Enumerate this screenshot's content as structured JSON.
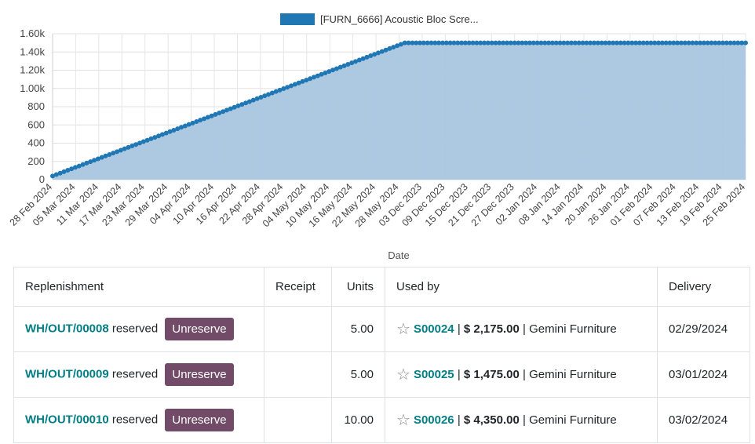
{
  "chart_data": {
    "type": "area",
    "legend": "[FURN_6666] Acoustic Bloc Scre...",
    "legend_position": "top",
    "xlabel": "Date",
    "ylabel": "",
    "yticks": [
      "0",
      "200",
      "400",
      "600",
      "800",
      "1.00k",
      "1.20k",
      "1.40k",
      "1.60k"
    ],
    "ylim": [
      0,
      1600
    ],
    "grid": true,
    "color": "#1f77b4",
    "fill_color": "#a9c6e0",
    "xticks": [
      "28 Feb 2024",
      "05 Mar 2024",
      "11 Mar 2024",
      "17 Mar 2024",
      "23 Mar 2024",
      "29 Mar 2024",
      "04 Apr 2024",
      "10 Apr 2024",
      "16 Apr 2024",
      "22 Apr 2024",
      "28 Apr 2024",
      "04 May 2024",
      "10 May 2024",
      "16 May 2024",
      "22 May 2024",
      "28 May 2024",
      "03 Dec 2023",
      "09 Dec 2023",
      "15 Dec 2023",
      "21 Dec 2023",
      "27 Dec 2023",
      "02 Jan 2024",
      "08 Jan 2024",
      "14 Jan 2024",
      "20 Jan 2024",
      "26 Jan 2024",
      "01 Feb 2024",
      "07 Feb 2024",
      "13 Feb 2024",
      "19 Feb 2024",
      "25 Feb 2024"
    ],
    "series": [
      {
        "name": "[FURN_6666] Acoustic Bloc Scre...",
        "segments": [
          {
            "from": "28 Feb 2024",
            "to": "31 May 2024",
            "y_start": 40,
            "y_end": 1500,
            "step_days": 1
          },
          {
            "from": "31 May 2024",
            "to": "29 Feb 2024",
            "y_start": 1500,
            "y_end": 1500,
            "step_days": 1
          }
        ]
      }
    ]
  },
  "table": {
    "headers": {
      "replenishment": "Replenishment",
      "receipt": "Receipt",
      "units": "Units",
      "used_by": "Used by",
      "delivery": "Delivery"
    },
    "rows": [
      {
        "ref": "WH/OUT/00008",
        "status": "reserved",
        "action": "Unreserve",
        "receipt": "",
        "units": "5.00",
        "order": "S00024",
        "amount": "$ 2,175.00",
        "customer": "Gemini Furniture",
        "delivery": "02/29/2024"
      },
      {
        "ref": "WH/OUT/00009",
        "status": "reserved",
        "action": "Unreserve",
        "receipt": "",
        "units": "5.00",
        "order": "S00025",
        "amount": "$ 1,475.00",
        "customer": "Gemini Furniture",
        "delivery": "03/01/2024"
      },
      {
        "ref": "WH/OUT/00010",
        "status": "reserved",
        "action": "Unreserve",
        "receipt": "",
        "units": "10.00",
        "order": "S00026",
        "amount": "$ 4,350.00",
        "customer": "Gemini Furniture",
        "delivery": "03/02/2024"
      }
    ],
    "separator": "|",
    "star_icon": "star-outline-icon"
  }
}
